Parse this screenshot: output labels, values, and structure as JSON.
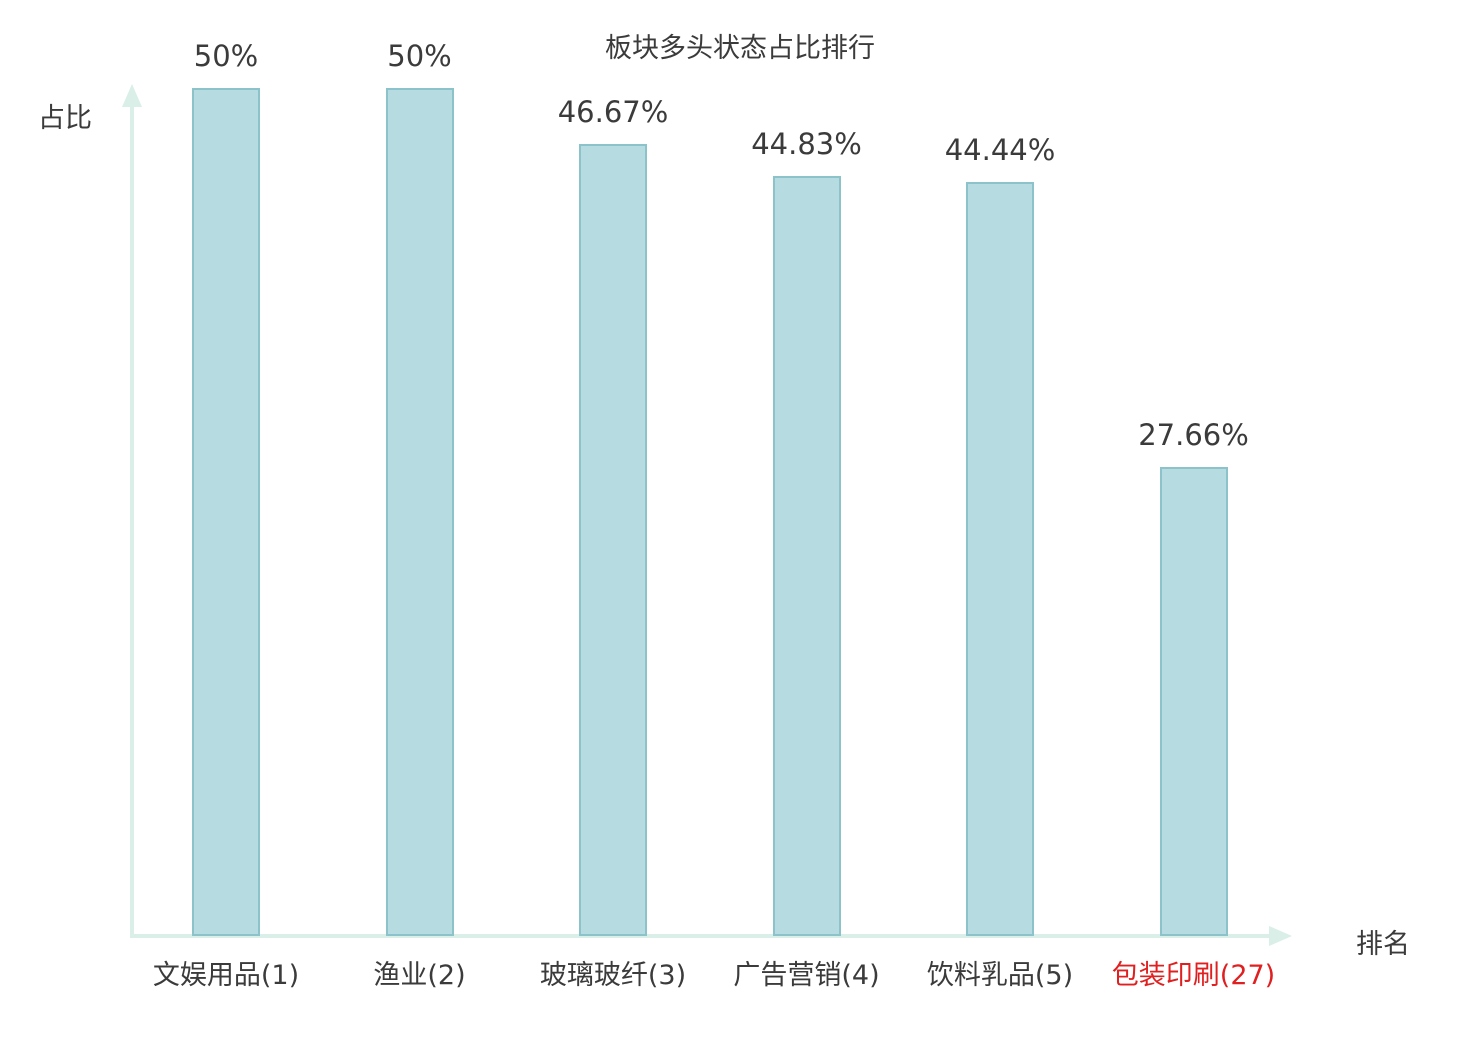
{
  "colors": {
    "bar_fill": "#b6dce1",
    "bar_border": "#8cc3cb",
    "axis": "#d9efe8",
    "text": "#3b3b3b",
    "highlight": "#e02020",
    "background": "#ffffff"
  },
  "chart_data": {
    "type": "bar",
    "title": "板块多头状态占比排行",
    "xlabel": "排名",
    "ylabel": "占比",
    "categories": [
      "文娱用品(1)",
      "渔业(2)",
      "玻璃玻纤(3)",
      "广告营销(4)",
      "饮料乳品(5)",
      "包装印刷(27)"
    ],
    "values": [
      50,
      50,
      46.67,
      44.83,
      44.44,
      27.66
    ],
    "value_labels": [
      "50%",
      "50%",
      "46.67%",
      "44.83%",
      "44.44%",
      "27.66%"
    ],
    "highlight_index": 5,
    "ylim": [
      0,
      50
    ],
    "grid": false,
    "legend": "none"
  }
}
